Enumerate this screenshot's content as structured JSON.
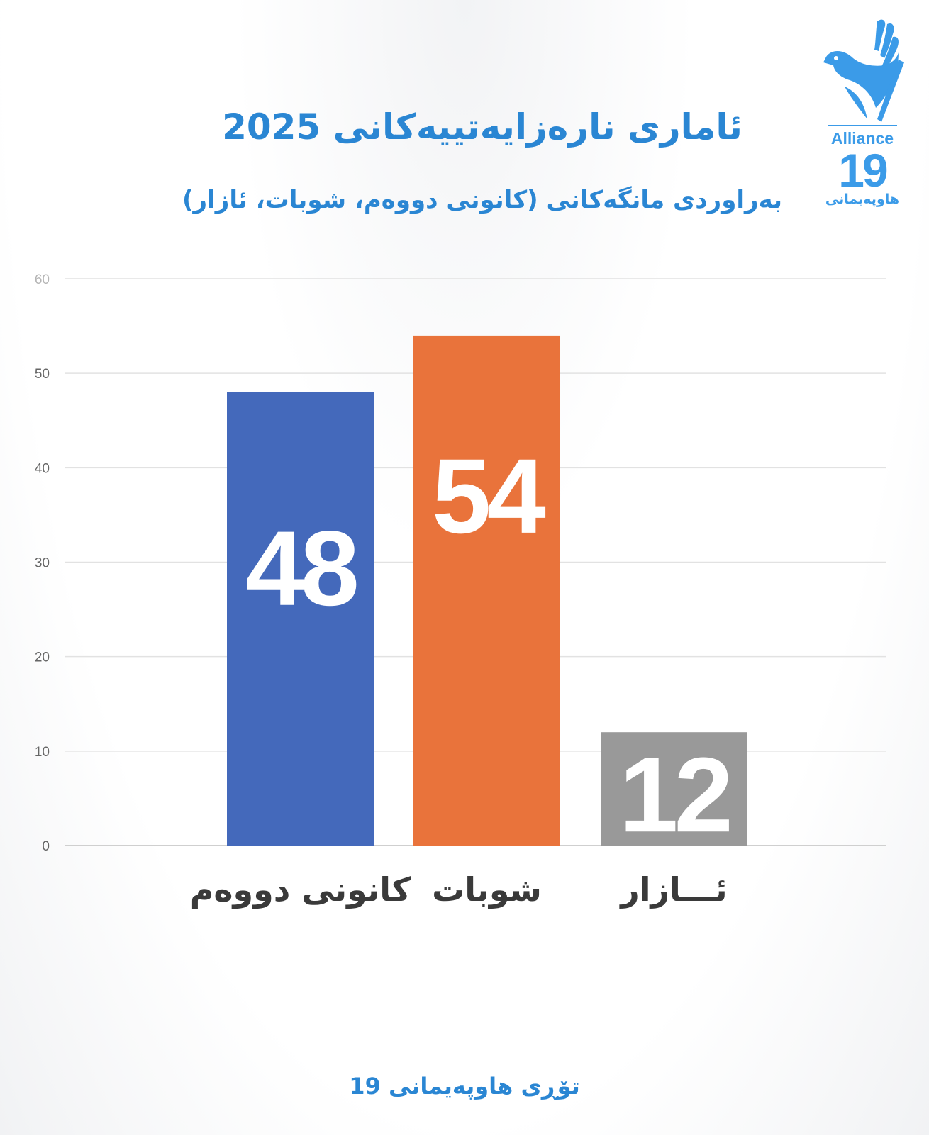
{
  "title": "ئاماری نارەزایەتییەکانی 2025",
  "subtitle": "بەراوردی مانگەکانی (کانونی دووەم، شوبات، ئازار)",
  "footer": "تۆڕی هاوپەیمانی 19",
  "logo": {
    "text_en": "Alliance",
    "number": "19",
    "text_ku": "هاوپەیمانی",
    "color": "#3b9be8"
  },
  "chart_data": {
    "type": "bar",
    "categories": [
      "کانونی دووەم",
      "شوبات",
      "ئـــازار"
    ],
    "values": [
      48,
      54,
      12
    ],
    "data_labels": [
      "48",
      "54",
      "12"
    ],
    "colors": [
      "#4469bb",
      "#e9733b",
      "#999999"
    ],
    "ylim": [
      0,
      60
    ],
    "yticks": [
      0,
      10,
      20,
      30,
      40,
      50,
      60
    ],
    "grid": true,
    "xlabel": "",
    "ylabel": ""
  }
}
